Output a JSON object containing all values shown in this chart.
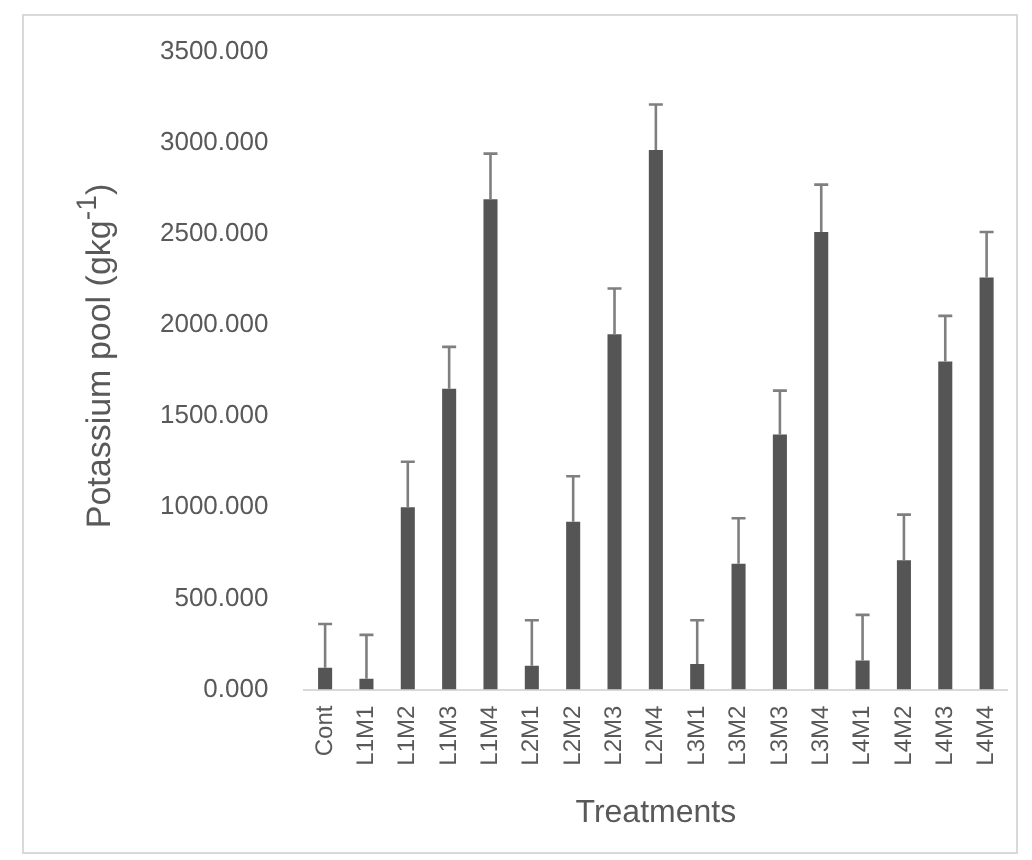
{
  "chart_data": {
    "type": "bar",
    "xlabel": "Treatments",
    "ylabel": "Potassium pool (gkg$^{-1}$)",
    "categories": [
      "Cont",
      "L1M1",
      "L1M2",
      "L1M3",
      "L1M4",
      "L2M1",
      "L2M2",
      "L2M3",
      "L2M4",
      "L3M1",
      "L3M2",
      "L3M3",
      "L3M4",
      "L4M1",
      "L4M2",
      "L4M3",
      "L4M4"
    ],
    "values": [
      120,
      60,
      1000,
      1650,
      2690,
      130,
      920,
      1950,
      2960,
      140,
      690,
      1400,
      2510,
      160,
      710,
      1800,
      2260
    ],
    "errors": [
      [
        120,
        360
      ],
      [
        60,
        300
      ],
      [
        1000,
        1250
      ],
      [
        1650,
        1880
      ],
      [
        2690,
        2940
      ],
      [
        130,
        380
      ],
      [
        920,
        1170
      ],
      [
        1950,
        2200
      ],
      [
        2960,
        3210
      ],
      [
        140,
        380
      ],
      [
        690,
        940
      ],
      [
        1400,
        1640
      ],
      [
        2510,
        2770
      ],
      [
        160,
        410
      ],
      [
        710,
        960
      ],
      [
        1800,
        2050
      ],
      [
        2260,
        2510
      ]
    ],
    "color": "#555555",
    "ylim": [
      0,
      3500
    ],
    "yticks": [
      {
        "value": 0,
        "label": "0.000"
      },
      {
        "value": 500,
        "label": "500.000"
      },
      {
        "value": 1000,
        "label": "1000.000"
      },
      {
        "value": 1500,
        "label": "1500.000"
      },
      {
        "value": 2000,
        "label": "2000.000"
      },
      {
        "value": 2500,
        "label": "2500.000"
      },
      {
        "value": 3000,
        "label": "3000.000"
      },
      {
        "value": 3500,
        "label": "3500.000"
      }
    ],
    "grid": false,
    "legend": false
  }
}
